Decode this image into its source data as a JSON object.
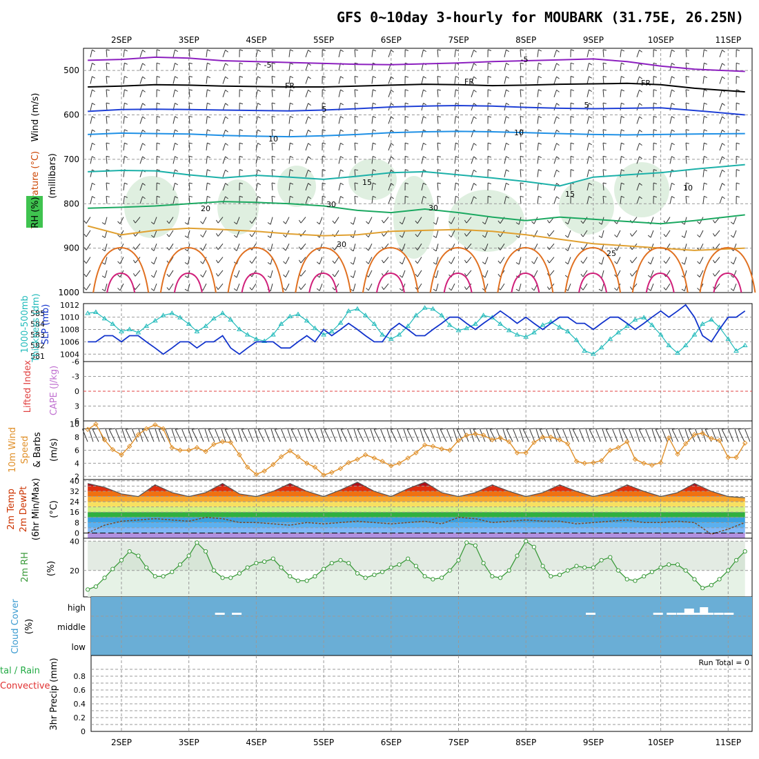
{
  "title": "GFS 0~10day 3-hourly for MOUBARK (31.75E, 26.25N)",
  "date_labels": [
    "2SEP",
    "3SEP",
    "4SEP",
    "5SEP",
    "6SEP",
    "7SEP",
    "8SEP",
    "9SEP",
    "10SEP",
    "11SEP"
  ],
  "run_total": "Run Total = 0",
  "colors": {
    "rh_green": "#b7dbbb",
    "temp_m5": "#8c1fbf",
    "temp_fr": "#000000",
    "temp_5": "#1e3fd6",
    "temp_10": "#1e90e6",
    "temp_15": "#1ab0a8",
    "temp_20": "#1aa860",
    "temp_25": "#e0a030",
    "temp_30": "#e07020",
    "temp_35": "#d0207a",
    "slp": "#1133cc",
    "thickness": "#22bbbb",
    "wind10m": "#e0902a",
    "rh2m": "#3a9a3a",
    "cloud": "#6aaed6"
  },
  "panels": {
    "upper_air": {
      "ylabels": [
        "Wind (m/s)",
        "Temperature (°C)",
        "RH (%)",
        "(millibars)"
      ],
      "ticks": [
        "500",
        "600",
        "700",
        "800",
        "900",
        "1000"
      ],
      "contour_labels": [
        "-5",
        "-5",
        "FR",
        "FR",
        "FR",
        "5",
        "5",
        "10",
        "10",
        "15",
        "15",
        "20",
        "25",
        "10",
        "30",
        "30",
        "30"
      ]
    },
    "slp": {
      "ylabels": [
        "1000-500mb",
        "Thickness (dm)",
        "SLP (mb)"
      ],
      "thickness_ticks": [
        "585",
        "584",
        "583",
        "582",
        "581"
      ],
      "slp_ticks": [
        "1012",
        "1010",
        "1008",
        "1006",
        "1004"
      ]
    },
    "li": {
      "ylabels": [
        "Lifted Index",
        "CAPE (J/kg)"
      ],
      "ticks": [
        "-6",
        "-3",
        "0",
        "3",
        "6"
      ]
    },
    "wind10m": {
      "ylabels": [
        "10m Wind",
        "Speed",
        "& Barbs",
        "(m/s)"
      ],
      "ticks": [
        "10",
        "8",
        "6",
        "4",
        "2"
      ]
    },
    "temp2m": {
      "ylabels": [
        "2m Temp",
        "2m DewPt",
        "(6hr Min/Max)",
        "(°C)"
      ],
      "ticks": [
        "40",
        "32",
        "24",
        "16",
        "8",
        "0"
      ],
      "extra_ticks": [
        "36",
        "28",
        "20",
        "12",
        "4"
      ]
    },
    "rh2m": {
      "ylabels": [
        "2m RH",
        "(%)"
      ],
      "ticks": [
        "40",
        "20"
      ]
    },
    "cloud": {
      "ylabels": [
        "Cloud Cover",
        "(%)"
      ],
      "ticks": [
        "high",
        "middle",
        "low"
      ]
    },
    "precip": {
      "ylabels": [
        "tal / Rain",
        "Convective",
        "3hr Precip (mm)"
      ],
      "ticks": [
        "0.8",
        "0.6",
        "0.4",
        "0.2",
        "0"
      ],
      "minor_ticks": [
        "0.9",
        "0.7",
        "0.5",
        "0.3",
        "0.1"
      ]
    }
  },
  "chart_data": [
    {
      "type": "line",
      "name": "Temperature isotherm pressure levels (mb)",
      "isotherms": [
        {
          "label": "-5",
          "pressure_mb": [
            477,
            475,
            470,
            472,
            478,
            480,
            482,
            484,
            486,
            487,
            485,
            483,
            480,
            478,
            476,
            474,
            480,
            490,
            497,
            502
          ]
        },
        {
          "label": "FR",
          "pressure_mb": [
            537,
            535,
            532,
            533,
            535,
            536,
            537,
            537,
            535,
            533,
            531,
            532,
            534,
            533,
            531,
            530,
            529,
            532,
            540,
            548
          ]
        },
        {
          "label": "5",
          "pressure_mb": [
            592,
            588,
            587,
            588,
            589,
            590,
            591,
            589,
            586,
            582,
            580,
            579,
            580,
            583,
            585,
            586,
            585,
            584,
            590,
            600
          ]
        },
        {
          "label": "10",
          "pressure_mb": [
            644,
            641,
            642,
            643,
            646,
            648,
            649,
            647,
            644,
            640,
            638,
            637,
            638,
            640,
            642,
            644,
            645,
            644,
            643,
            642
          ]
        },
        {
          "label": "15",
          "pressure_mb": [
            728,
            725,
            726,
            735,
            742,
            736,
            740,
            745,
            738,
            730,
            728,
            735,
            742,
            750,
            760,
            740,
            735,
            730,
            722,
            712
          ]
        },
        {
          "label": "20",
          "pressure_mb": [
            810,
            808,
            805,
            800,
            795,
            797,
            800,
            805,
            815,
            820,
            812,
            820,
            830,
            838,
            830,
            835,
            840,
            845,
            838,
            825
          ]
        },
        {
          "label": "25",
          "pressure_mb": [
            850,
            870,
            860,
            855,
            858,
            862,
            868,
            872,
            870,
            862,
            860,
            858,
            862,
            870,
            880,
            890,
            895,
            900,
            905,
            900
          ]
        }
      ],
      "x_days": [
        1.5,
        2.0,
        2.5,
        3.0,
        3.5,
        4.0,
        4.5,
        5.0,
        5.5,
        6.0,
        6.5,
        7.0,
        7.5,
        8.0,
        8.5,
        9.0,
        9.5,
        10.0,
        10.5,
        11.25
      ],
      "ylim": [
        1000,
        450
      ],
      "ylabel": "(millibars)"
    },
    {
      "type": "line",
      "name": "SLP and 1000-500mb Thickness",
      "x_days": [
        1.5,
        1.62,
        1.75,
        1.87,
        2.0,
        2.12,
        2.25,
        2.37,
        2.5,
        2.62,
        2.75,
        2.87,
        3.0,
        3.12,
        3.25,
        3.37,
        3.5,
        3.62,
        3.75,
        3.87,
        4.0,
        4.12,
        4.25,
        4.37,
        4.5,
        4.62,
        4.75,
        4.87,
        5.0,
        5.12,
        5.25,
        5.37,
        5.5,
        5.62,
        5.75,
        5.87,
        6.0,
        6.12,
        6.25,
        6.37,
        6.5,
        6.62,
        6.75,
        6.87,
        7.0,
        7.12,
        7.25,
        7.37,
        7.5,
        7.62,
        7.75,
        7.87,
        8.0,
        8.12,
        8.25,
        8.37,
        8.5,
        8.62,
        8.75,
        8.87,
        9.0,
        9.12,
        9.25,
        9.37,
        9.5,
        9.62,
        9.75,
        9.87,
        10.0,
        10.12,
        10.25,
        10.37,
        10.5,
        10.62,
        10.75,
        10.87,
        11.0,
        11.12,
        11.25
      ],
      "series": [
        {
          "name": "SLP (mb)",
          "values": [
            1006,
            1006,
            1007,
            1007,
            1006,
            1007,
            1007,
            1006,
            1005,
            1004,
            1005,
            1006,
            1006,
            1005,
            1006,
            1006,
            1007,
            1005,
            1004,
            1005,
            1006,
            1006,
            1006,
            1005,
            1005,
            1006,
            1007,
            1006,
            1008,
            1007,
            1008,
            1009,
            1008,
            1007,
            1006,
            1006,
            1008,
            1009,
            1008,
            1007,
            1007,
            1008,
            1009,
            1010,
            1010,
            1009,
            1008,
            1009,
            1010,
            1011,
            1010,
            1009,
            1010,
            1009,
            1008,
            1009,
            1010,
            1010,
            1009,
            1009,
            1008,
            1009,
            1010,
            1010,
            1009,
            1008,
            1009,
            1010,
            1011,
            1010,
            1011,
            1012,
            1010,
            1007,
            1006,
            1008,
            1010,
            1010,
            1011
          ]
        },
        {
          "name": "Thickness (dm)",
          "values": [
            585.0,
            585.1,
            584.5,
            584.0,
            583.3,
            583.5,
            583.2,
            583.8,
            584.3,
            584.8,
            585.0,
            584.6,
            584.0,
            583.3,
            583.8,
            584.5,
            585.0,
            584.4,
            583.5,
            583.0,
            582.6,
            582.4,
            583.0,
            584.0,
            584.7,
            584.9,
            584.3,
            583.6,
            583.0,
            583.3,
            584.1,
            585.2,
            585.4,
            584.8,
            584.0,
            583.0,
            582.6,
            583.0,
            583.8,
            584.8,
            585.5,
            585.4,
            584.8,
            583.9,
            583.4,
            583.6,
            584.0,
            584.8,
            584.6,
            584.0,
            583.4,
            583.0,
            582.8,
            583.2,
            583.9,
            584.2,
            583.7,
            583.3,
            582.5,
            581.5,
            581.2,
            581.8,
            582.6,
            583.2,
            583.8,
            584.4,
            584.6,
            583.9,
            583.0,
            582.0,
            581.3,
            582.0,
            583.0,
            584.0,
            584.4,
            583.7,
            582.6,
            581.5,
            582.0
          ]
        }
      ]
    },
    {
      "type": "line",
      "name": "Lifted Index / CAPE",
      "ylim": [
        6,
        -6
      ],
      "series": []
    },
    {
      "type": "line",
      "name": "10m Wind Speed (m/s)",
      "x_days": [
        1.5,
        1.62,
        1.75,
        1.87,
        2.0,
        2.12,
        2.25,
        2.37,
        2.5,
        2.62,
        2.75,
        2.87,
        3.0,
        3.12,
        3.25,
        3.37,
        3.5,
        3.62,
        3.75,
        3.87,
        4.0,
        4.12,
        4.25,
        4.37,
        4.5,
        4.62,
        4.75,
        4.87,
        5.0,
        5.12,
        5.25,
        5.37,
        5.5,
        5.62,
        5.75,
        5.87,
        6.0,
        6.12,
        6.25,
        6.37,
        6.5,
        6.62,
        6.75,
        6.87,
        7.0,
        7.12,
        7.25,
        7.37,
        7.5,
        7.62,
        7.75,
        7.87,
        8.0,
        8.12,
        8.25,
        8.37,
        8.5,
        8.62,
        8.75,
        8.87,
        9.0,
        9.12,
        9.25,
        9.37,
        9.5,
        9.62,
        9.75,
        9.87,
        10.0,
        10.12,
        10.25,
        10.37,
        10.5,
        10.62,
        10.75,
        10.87,
        11.0,
        11.12,
        11.25
      ],
      "values": [
        9.2,
        10.0,
        7.6,
        6.1,
        5.3,
        6.6,
        8.4,
        9.3,
        9.9,
        9.3,
        6.4,
        6.0,
        6.0,
        6.4,
        5.8,
        6.9,
        7.3,
        7.2,
        5.3,
        3.4,
        2.3,
        2.8,
        3.8,
        5.0,
        5.9,
        5.0,
        4.0,
        3.4,
        2.2,
        2.6,
        3.2,
        4.1,
        4.6,
        5.3,
        4.8,
        4.3,
        3.6,
        4.0,
        4.8,
        5.6,
        6.8,
        6.6,
        6.2,
        6.0,
        7.5,
        8.3,
        8.5,
        8.3,
        7.6,
        7.9,
        7.3,
        5.6,
        5.6,
        7.2,
        8.0,
        8.0,
        7.6,
        7.0,
        4.3,
        4.0,
        4.1,
        4.4,
        6.0,
        6.4,
        7.3,
        4.6,
        4.0,
        3.7,
        4.1,
        7.9,
        5.4,
        7.0,
        8.4,
        8.6,
        7.8,
        7.5,
        4.9,
        4.9,
        7.1
      ],
      "ylim": [
        1.5,
        10.5
      ],
      "ylabel": "(m/s)"
    },
    {
      "type": "area",
      "name": "2m Temperature and DewPt (°C)",
      "x_days": [
        1.5,
        1.75,
        2.0,
        2.25,
        2.5,
        2.75,
        3.0,
        3.25,
        3.5,
        3.75,
        4.0,
        4.25,
        4.5,
        4.75,
        5.0,
        5.25,
        5.5,
        5.75,
        6.0,
        6.25,
        6.5,
        6.75,
        7.0,
        7.25,
        7.5,
        7.75,
        8.0,
        8.25,
        8.5,
        8.75,
        9.0,
        9.25,
        9.5,
        9.75,
        10.0,
        10.25,
        10.5,
        10.75,
        11.0,
        11.25
      ],
      "series": [
        {
          "name": "2m Temp",
          "values": [
            38,
            35,
            30,
            28,
            37,
            31,
            28,
            31,
            38,
            30,
            28,
            32,
            38,
            32,
            28,
            33,
            39,
            32,
            28,
            34,
            39,
            31,
            28,
            31,
            37,
            32,
            28,
            31,
            37,
            32,
            28,
            31,
            37,
            32,
            28,
            31,
            38,
            32,
            28,
            27
          ]
        },
        {
          "name": "2m DewPt",
          "values": [
            0,
            6,
            9,
            10,
            11,
            10,
            9,
            12,
            11,
            8,
            8,
            7,
            6,
            8,
            7,
            8,
            9,
            8,
            7,
            8,
            9,
            7,
            12,
            11,
            8,
            9,
            10,
            9,
            9,
            7,
            8,
            9,
            10,
            8,
            8,
            9,
            8,
            -1,
            3,
            8
          ]
        }
      ],
      "ylim": [
        -4,
        41
      ],
      "ylabel": "(°C)"
    },
    {
      "type": "area",
      "name": "2m RH (%)",
      "x_days": [
        1.5,
        1.62,
        1.75,
        1.87,
        2.0,
        2.12,
        2.25,
        2.37,
        2.5,
        2.62,
        2.75,
        2.87,
        3.0,
        3.12,
        3.25,
        3.37,
        3.5,
        3.62,
        3.75,
        3.87,
        4.0,
        4.12,
        4.25,
        4.37,
        4.5,
        4.62,
        4.75,
        4.87,
        5.0,
        5.12,
        5.25,
        5.37,
        5.5,
        5.62,
        5.75,
        5.87,
        6.0,
        6.12,
        6.25,
        6.37,
        6.5,
        6.62,
        6.75,
        6.87,
        7.0,
        7.12,
        7.25,
        7.37,
        7.5,
        7.62,
        7.75,
        7.87,
        8.0,
        8.12,
        8.25,
        8.37,
        8.5,
        8.62,
        8.75,
        8.87,
        9.0,
        9.12,
        9.25,
        9.37,
        9.5,
        9.62,
        9.75,
        9.87,
        10.0,
        10.12,
        10.25,
        10.37,
        10.5,
        10.62,
        10.75,
        10.87,
        11.0,
        11.12,
        11.25
      ],
      "values": [
        7,
        9,
        15,
        21,
        27,
        33,
        30,
        22,
        16,
        16,
        19,
        24,
        30,
        39,
        33,
        20,
        15,
        15,
        18,
        22,
        25,
        26,
        28,
        22,
        16,
        13,
        13,
        16,
        21,
        25,
        27,
        25,
        18,
        15,
        17,
        19,
        22,
        24,
        28,
        23,
        16,
        14,
        15,
        20,
        27,
        39,
        37,
        25,
        16,
        15,
        20,
        30,
        40,
        36,
        23,
        16,
        17,
        20,
        23,
        22,
        22,
        27,
        29,
        20,
        14,
        13,
        16,
        19,
        22,
        24,
        24,
        20,
        14,
        8,
        10,
        14,
        20,
        27,
        33
      ],
      "ylim": [
        2,
        42
      ],
      "ylabel": "(%)"
    },
    {
      "type": "bar",
      "name": "Cloud Cover",
      "levels": [
        "high",
        "middle",
        "low"
      ],
      "cover": "full",
      "high_gaps_days": [
        3.45,
        3.7,
        8.95,
        9.95,
        10.15,
        10.3,
        10.45,
        10.55,
        10.7,
        10.85,
        11.0
      ]
    },
    {
      "type": "bar",
      "name": "3hr Precip (mm)",
      "ylim": [
        0,
        1.0
      ],
      "values": [],
      "run_total": 0
    }
  ]
}
